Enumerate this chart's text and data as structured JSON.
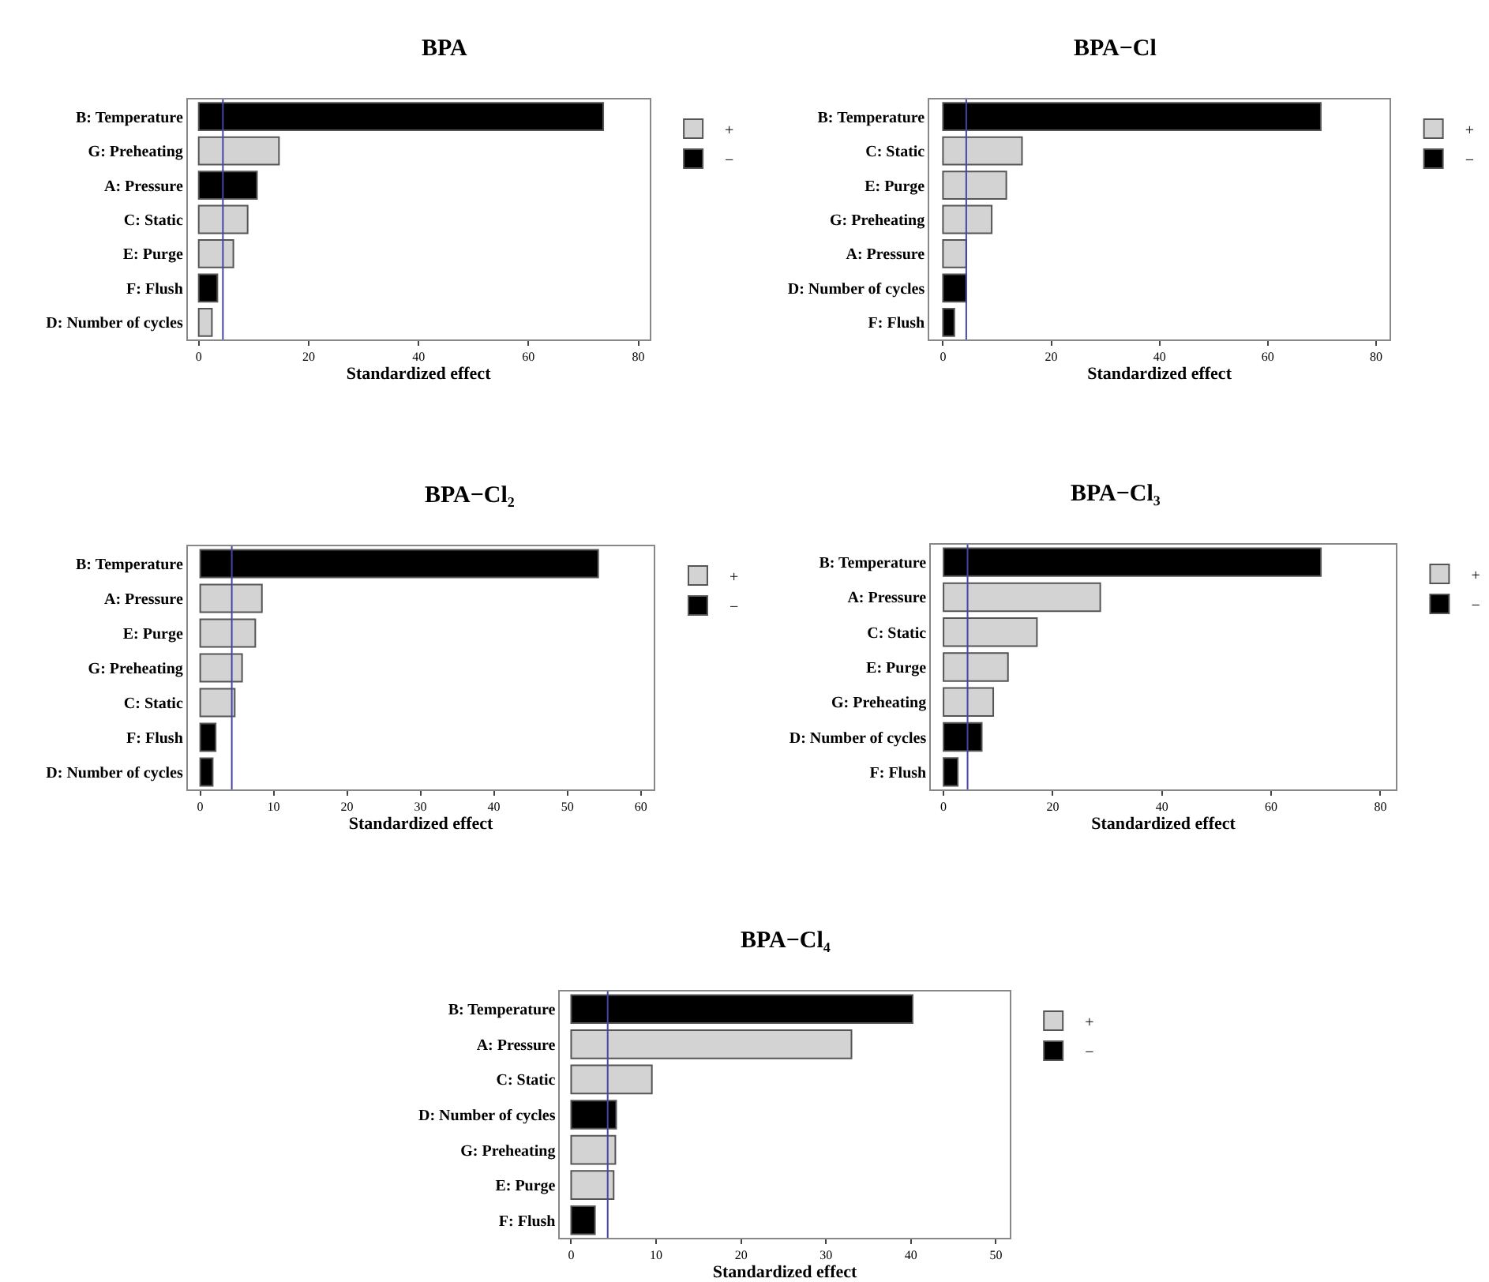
{
  "chart_data": [
    {
      "type": "bar",
      "orientation": "horizontal",
      "title": "BPA",
      "xlabel": "Standardized effect",
      "legend": "right top",
      "categories": [
        "B: Temperature",
        "G: Preheating",
        "A: Pressure",
        "C: Static",
        "E: Purge",
        "F: Flush",
        "D: Number of cycles"
      ],
      "series": [
        {
          "name": "+",
          "color": "#d3d3d3",
          "values": [
            null,
            14.6,
            null,
            8.9,
            6.3,
            null,
            2.4
          ]
        },
        {
          "name": "−",
          "color": "#000000",
          "values": [
            73.6,
            null,
            10.6,
            null,
            null,
            3.4,
            null
          ]
        }
      ],
      "xlim": [
        -2,
        82
      ],
      "xticks": [
        0,
        20,
        40,
        60,
        80
      ],
      "ref_lines": [
        {
          "axis": "x",
          "value": 4.4,
          "color": "#4444aa"
        }
      ]
    },
    {
      "type": "bar",
      "orientation": "horizontal",
      "title": "BPA−Cl",
      "xlabel": "Standardized effect",
      "legend": "right top",
      "categories": [
        "B: Temperature",
        "C: Static",
        "E: Purge",
        "G: Preheating",
        "A: Pressure",
        "D: Number of cycles",
        "F: Flush"
      ],
      "series": [
        {
          "name": "+",
          "color": "#d3d3d3",
          "values": [
            null,
            14.6,
            11.7,
            9.0,
            4.3,
            null,
            null
          ]
        },
        {
          "name": "−",
          "color": "#000000",
          "values": [
            69.8,
            null,
            null,
            null,
            null,
            4.3,
            2.1
          ]
        }
      ],
      "xlim": [
        -2.5,
        82.5
      ],
      "xticks": [
        0,
        20,
        40,
        60,
        80
      ],
      "ref_lines": [
        {
          "axis": "x",
          "value": 4.3,
          "color": "#4444aa"
        }
      ]
    },
    {
      "type": "bar",
      "orientation": "horizontal",
      "title": "BPA−Cl₂",
      "xlabel": "Standardized effect",
      "legend": "right top",
      "categories": [
        "B: Temperature",
        "A: Pressure",
        "E: Purge",
        "G: Preheating",
        "C: Static",
        "F: Flush",
        "D: Number of cycles"
      ],
      "series": [
        {
          "name": "+",
          "color": "#d3d3d3",
          "values": [
            null,
            8.4,
            7.5,
            5.7,
            4.7,
            null,
            null
          ]
        },
        {
          "name": "−",
          "color": "#000000",
          "values": [
            54.2,
            null,
            null,
            null,
            null,
            2.1,
            1.7
          ]
        }
      ],
      "xlim": [
        -1.7,
        61.8
      ],
      "xticks": [
        0,
        10,
        20,
        30,
        40,
        50,
        60
      ],
      "ref_lines": [
        {
          "axis": "x",
          "value": 4.3,
          "color": "#4444aa"
        }
      ]
    },
    {
      "type": "bar",
      "orientation": "horizontal",
      "title": "BPA−Cl₃",
      "xlabel": "Standardized effect",
      "legend": "right top",
      "categories": [
        "B: Temperature",
        "A: Pressure",
        "C: Static",
        "E: Purge",
        "G: Preheating",
        "D: Number of cycles",
        "F: Flush"
      ],
      "series": [
        {
          "name": "+",
          "color": "#d3d3d3",
          "values": [
            null,
            28.7,
            17.1,
            11.8,
            9.1,
            null,
            null
          ]
        },
        {
          "name": "−",
          "color": "#000000",
          "values": [
            69.1,
            null,
            null,
            null,
            null,
            7.0,
            2.6
          ]
        }
      ],
      "xlim": [
        -2.3,
        82.8
      ],
      "xticks": [
        0,
        20,
        40,
        60,
        80
      ],
      "ref_lines": [
        {
          "axis": "x",
          "value": 4.4,
          "color": "#4444aa"
        }
      ]
    },
    {
      "type": "bar",
      "orientation": "horizontal",
      "title": "BPA−Cl₄",
      "xlabel": "Standardized effect",
      "legend": "right top",
      "categories": [
        "B: Temperature",
        "A: Pressure",
        "C: Static",
        "D: Number of cycles",
        "G: Preheating",
        "E: Purge",
        "F: Flush"
      ],
      "series": [
        {
          "name": "+",
          "color": "#d3d3d3",
          "values": [
            null,
            33.0,
            9.5,
            null,
            5.2,
            5.0,
            null
          ]
        },
        {
          "name": "−",
          "color": "#000000",
          "values": [
            40.2,
            null,
            null,
            5.3,
            null,
            null,
            2.8
          ]
        }
      ],
      "xlim": [
        -1.3,
        51.6
      ],
      "xticks": [
        0,
        10,
        20,
        30,
        40,
        50
      ],
      "ref_lines": [
        {
          "axis": "x",
          "value": 4.3,
          "color": "#4444aa"
        }
      ]
    }
  ]
}
